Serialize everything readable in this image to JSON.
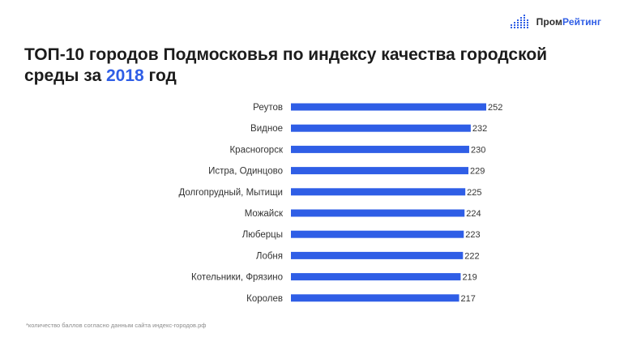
{
  "brand": {
    "name_part1": "Пром",
    "name_part2": "Рейтинг",
    "accent_color": "#2f5ee6",
    "icon": "bar-dots-logo-icon"
  },
  "title": {
    "before": "ТОП-10 городов Подмосковья по индексу качества городской среды за ",
    "year": "2018",
    "after": " год"
  },
  "footnote": "*количество баллов согласно данным сайта индекс-городов.рф",
  "chart_data": {
    "type": "bar",
    "orientation": "horizontal",
    "categories": [
      "Реутов",
      "Видное",
      "Красногорск",
      "Истра, Одинцово",
      "Долгопрудный, Мытищи",
      "Можайск",
      "Люберцы",
      "Лобня",
      "Котельники, Фрязино",
      "Королев"
    ],
    "values": [
      252,
      232,
      230,
      229,
      225,
      224,
      223,
      222,
      219,
      217
    ],
    "bar_color": "#2f5ee6",
    "xlim": [
      0,
      252
    ],
    "grid": false,
    "legend": false
  }
}
